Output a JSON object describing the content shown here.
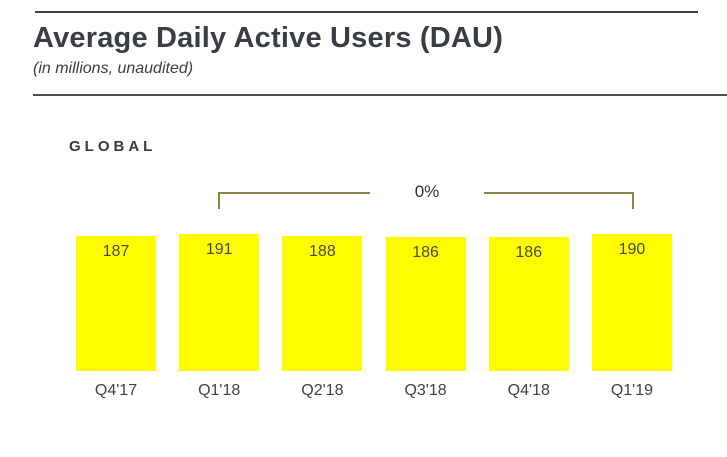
{
  "chart_data": {
    "type": "bar",
    "title": "Average Daily Active Users (DAU)",
    "subtitle": "(in millions, unaudited)",
    "section_label": "GLOBAL",
    "unit": "millions",
    "categories": [
      "Q4'17",
      "Q1'18",
      "Q2'18",
      "Q3'18",
      "Q4'18",
      "Q1'19"
    ],
    "values": [
      187,
      191,
      188,
      186,
      186,
      190
    ],
    "annotation": {
      "label": "0%",
      "from": "Q1'18",
      "to": "Q1'19"
    },
    "bar_color": "#fffc00",
    "bracket_color": "#8d8546",
    "value_label_position": "inside-top",
    "ylim": [
      0,
      200
    ],
    "grid": false,
    "legend": false
  }
}
